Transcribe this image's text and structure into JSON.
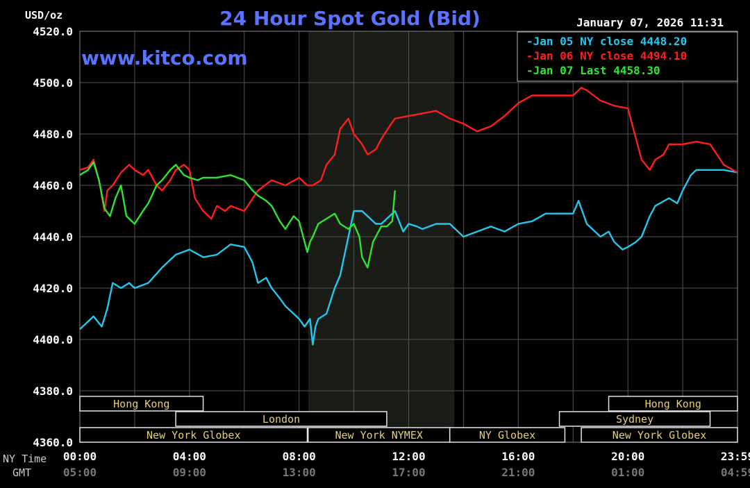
{
  "chart_data": {
    "type": "line",
    "title": "24 Hour Spot Gold (Bid)",
    "watermark": "www.kitco.com",
    "timestamp": "January 07, 2026 11:31",
    "y_unit_label": "USD/oz",
    "ylim": [
      4360,
      4520
    ],
    "y_ticks": [
      "4520.0",
      "4500.0",
      "4480.0",
      "4460.0",
      "4440.0",
      "4420.0",
      "4400.0",
      "4380.0",
      "4360.0"
    ],
    "x_row_labels": [
      "NY Time",
      "GMT"
    ],
    "x_ticks_ny": [
      "00:00",
      "04:00",
      "08:00",
      "12:00",
      "16:00",
      "20:00",
      "23:59"
    ],
    "x_ticks_gmt": [
      "05:00",
      "09:00",
      "13:00",
      "17:00",
      "21:00",
      "01:00",
      "04:59"
    ],
    "grid": true,
    "legend_position": "top-right",
    "colors": {
      "background": "#000000",
      "grid": "#555555",
      "text": "#ffffff",
      "title": "#5b73ff",
      "shade": "#1a1d17",
      "session_fill": "#2b2200",
      "session_text": "#e8d070"
    },
    "legend": [
      {
        "label": "Jan 05 NY close",
        "value": "4448.20",
        "color": "#23c8f0",
        "value_color": "#23c8f0"
      },
      {
        "label": "Jan 06 NY close",
        "value": "4494.10",
        "color": "#ff1e1e",
        "value_color": "#ff1e1e"
      },
      {
        "label": "Jan 07 Last",
        "value": "4458.30",
        "color": "#2ee62e",
        "value_color": "#2ee62e"
      }
    ],
    "sessions": [
      {
        "name": "Hong Kong",
        "row": 0,
        "start_h": 0,
        "end_h": 4.5
      },
      {
        "name": "Hong Kong",
        "row": 0,
        "start_h": 19.3,
        "end_h": 24
      },
      {
        "name": "London",
        "row": 1,
        "start_h": 3.5,
        "end_h": 11.2
      },
      {
        "name": "Sydney",
        "row": 1,
        "start_h": 17.5,
        "end_h": 23.0
      },
      {
        "name": "New York Globex",
        "row": 2,
        "start_h": 0,
        "end_h": 8.3
      },
      {
        "name": "New York NYMEX",
        "row": 2,
        "start_h": 8.33,
        "end_h": 13.5
      },
      {
        "name": "NY Globex",
        "row": 2,
        "start_h": 13.5,
        "end_h": 17.7
      },
      {
        "name": "New York Globex",
        "row": 2,
        "start_h": 18.3,
        "end_h": 24
      }
    ],
    "shaded_range_h": [
      8.33,
      13.67
    ],
    "series": [
      {
        "name": "Jan 05 NY close",
        "color": "#23c8f0",
        "x": [
          0,
          0.5,
          0.8,
          1.0,
          1.2,
          1.5,
          1.8,
          2.0,
          2.5,
          3.0,
          3.3,
          3.5,
          4.0,
          4.5,
          5.0,
          5.5,
          6.0,
          6.3,
          6.5,
          6.8,
          7.0,
          7.3,
          7.5,
          7.8,
          8.0,
          8.2,
          8.4,
          8.5,
          8.6,
          8.7,
          9.0,
          9.3,
          9.5,
          9.8,
          10.0,
          10.3,
          10.5,
          10.8,
          11.0,
          11.3,
          11.5,
          11.8,
          12.0,
          12.3,
          12.5,
          13.0,
          13.5,
          14.0,
          14.5,
          15.0,
          15.5,
          16.0,
          16.5,
          17.0,
          17.5,
          18.0,
          18.2,
          18.5,
          19.0,
          19.3,
          19.5,
          19.8,
          20.0,
          20.3,
          20.5,
          20.8,
          21.0,
          21.5,
          21.8,
          22.0,
          22.3,
          22.5,
          23.0,
          23.5,
          24.0
        ],
        "y": [
          4404,
          4409,
          4405,
          4412,
          4422,
          4420,
          4422,
          4420,
          4422,
          4428,
          4431,
          4433,
          4435,
          4432,
          4433,
          4437,
          4436,
          4430,
          4422,
          4424,
          4420,
          4416,
          4413,
          4410,
          4408,
          4405,
          4408,
          4398,
          4405,
          4408,
          4410,
          4420,
          4425,
          4440,
          4450,
          4450,
          4448,
          4445,
          4445,
          4448,
          4450,
          4442,
          4445,
          4444,
          4443,
          4445,
          4445,
          4440,
          4442,
          4444,
          4442,
          4445,
          4446,
          4449,
          4449,
          4449,
          4454,
          4445,
          4440,
          4442,
          4438,
          4435,
          4436,
          4438,
          4440,
          4448,
          4452,
          4455,
          4453,
          4458,
          4464,
          4466,
          4466,
          4466,
          4465
        ]
      },
      {
        "name": "Jan 06 NY close",
        "color": "#ff1e1e",
        "x": [
          0,
          0.3,
          0.5,
          0.7,
          0.9,
          1.0,
          1.2,
          1.5,
          1.8,
          2.0,
          2.3,
          2.5,
          2.8,
          3.0,
          3.3,
          3.5,
          3.8,
          4.0,
          4.2,
          4.5,
          4.8,
          5.0,
          5.3,
          5.5,
          6.0,
          6.5,
          7.0,
          7.5,
          8.0,
          8.3,
          8.5,
          8.8,
          9.0,
          9.3,
          9.5,
          9.8,
          10.0,
          10.3,
          10.5,
          10.8,
          11.0,
          11.3,
          11.5,
          12.0,
          12.5,
          13.0,
          13.5,
          14.0,
          14.5,
          15.0,
          15.5,
          16.0,
          16.5,
          17.0,
          17.5,
          18.0,
          18.3,
          18.5,
          19.0,
          19.5,
          20.0,
          20.3,
          20.5,
          20.8,
          21.0,
          21.3,
          21.5,
          22.0,
          22.5,
          23.0,
          23.5,
          24.0
        ],
        "y": [
          4466,
          4467,
          4470,
          4462,
          4450,
          4458,
          4460,
          4465,
          4468,
          4466,
          4464,
          4466,
          4460,
          4458,
          4462,
          4466,
          4468,
          4466,
          4455,
          4450,
          4447,
          4452,
          4450,
          4452,
          4450,
          4458,
          4462,
          4460,
          4463,
          4460,
          4460,
          4462,
          4468,
          4472,
          4482,
          4486,
          4480,
          4476,
          4472,
          4474,
          4478,
          4483,
          4486,
          4487,
          4488,
          4489,
          4486,
          4484,
          4481,
          4483,
          4487,
          4492,
          4495,
          4495,
          4495,
          4495,
          4498,
          4497,
          4493,
          4491,
          4490,
          4478,
          4470,
          4466,
          4470,
          4472,
          4476,
          4476,
          4477,
          4476,
          4468,
          4465
        ]
      },
      {
        "name": "Jan 07 Last",
        "color": "#2ee62e",
        "x": [
          0,
          0.3,
          0.5,
          0.7,
          0.9,
          1.1,
          1.3,
          1.5,
          1.7,
          2.0,
          2.3,
          2.5,
          2.8,
          3.0,
          3.3,
          3.5,
          3.8,
          4.0,
          4.3,
          4.5,
          5.0,
          5.5,
          6.0,
          6.3,
          6.5,
          6.8,
          7.0,
          7.3,
          7.5,
          7.8,
          8.0,
          8.2,
          8.3,
          8.4,
          8.5,
          8.7,
          9.0,
          9.3,
          9.5,
          9.8,
          10.0,
          10.2,
          10.3,
          10.5,
          10.7,
          10.9,
          11.0,
          11.2,
          11.4,
          11.5
        ],
        "y": [
          4464,
          4466,
          4469,
          4462,
          4451,
          4448,
          4455,
          4460,
          4448,
          4445,
          4450,
          4453,
          4460,
          4462,
          4466,
          4468,
          4464,
          4463,
          4462,
          4463,
          4463,
          4464,
          4462,
          4458,
          4456,
          4454,
          4452,
          4446,
          4443,
          4448,
          4446,
          4438,
          4434,
          4438,
          4440,
          4445,
          4447,
          4449,
          4445,
          4443,
          4445,
          4440,
          4432,
          4428,
          4438,
          4442,
          4444,
          4444,
          4446,
          4458
        ]
      }
    ]
  }
}
